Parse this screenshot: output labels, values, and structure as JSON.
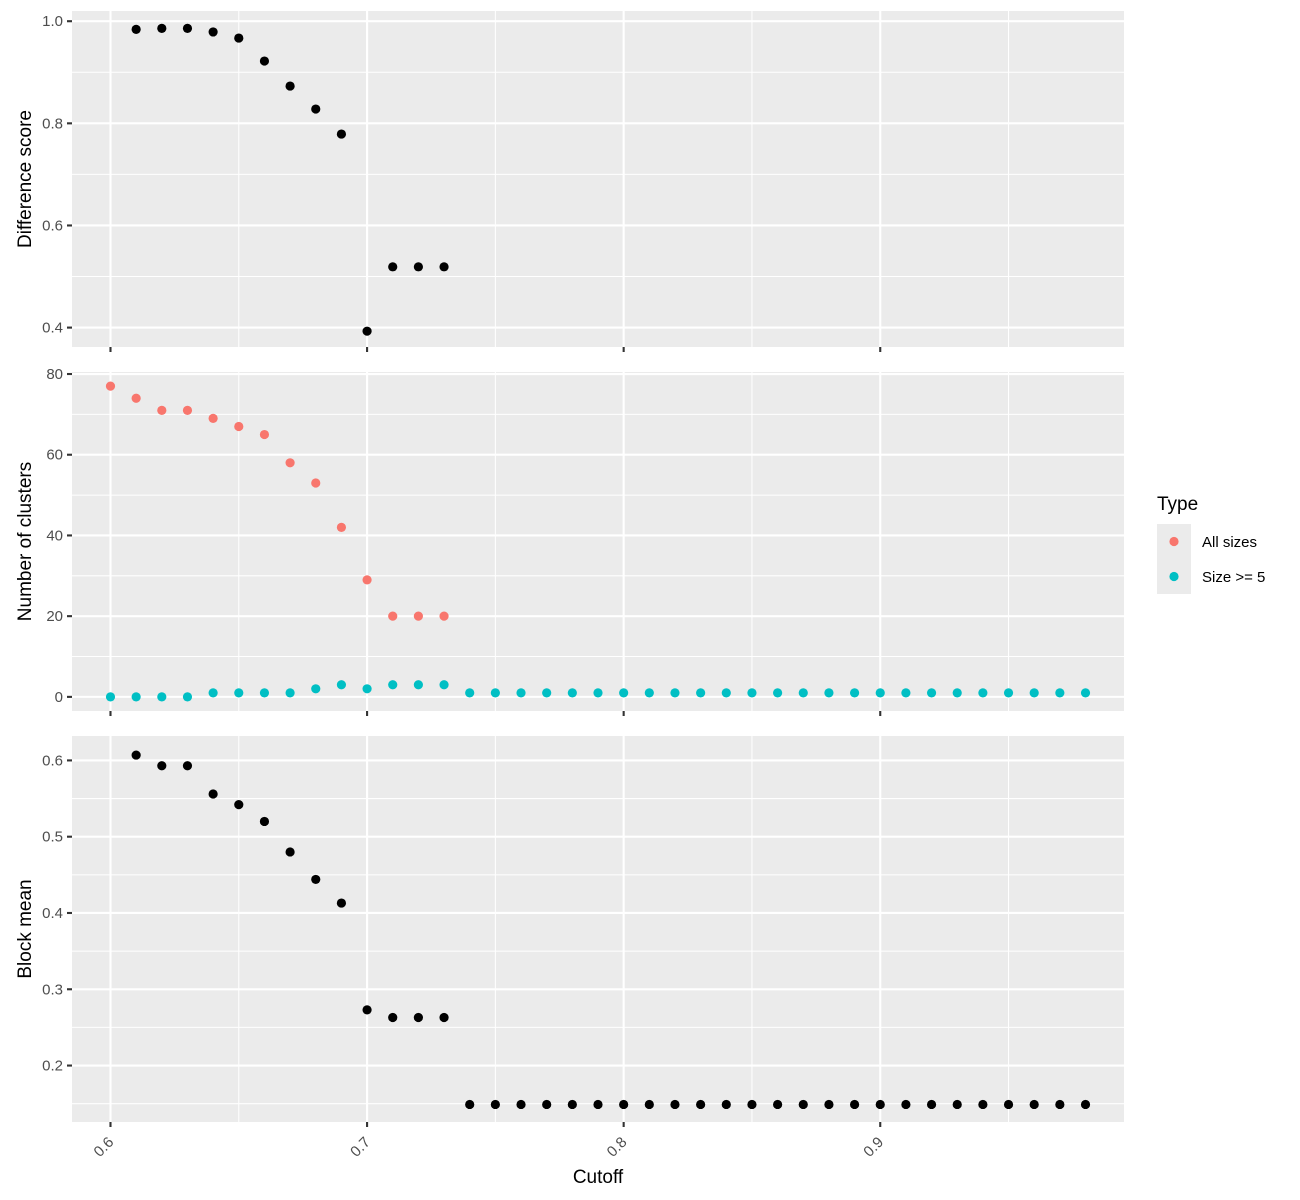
{
  "chart_data": [
    {
      "type": "scatter",
      "panel": "top",
      "ylabel": "Difference score",
      "xlim": [
        0.585,
        0.995
      ],
      "ylim": [
        0.362,
        1.02
      ],
      "yticks": [
        0.4,
        0.6,
        0.8,
        1.0
      ],
      "ytick_labels": [
        "0.4",
        "0.6",
        "0.8",
        "1.0"
      ],
      "color": "#000000",
      "x": [
        0.61,
        0.62,
        0.63,
        0.64,
        0.65,
        0.66,
        0.67,
        0.68,
        0.69,
        0.7,
        0.71,
        0.72,
        0.73
      ],
      "y": [
        0.984,
        0.986,
        0.986,
        0.979,
        0.967,
        0.922,
        0.873,
        0.828,
        0.779,
        0.393,
        0.519,
        0.519,
        0.519
      ]
    },
    {
      "type": "scatter",
      "panel": "middle",
      "ylabel": "Number of clusters",
      "xlim": [
        0.585,
        0.995
      ],
      "ylim": [
        -3.5,
        80.5
      ],
      "yticks": [
        0,
        20,
        40,
        60,
        80
      ],
      "ytick_labels": [
        "0",
        "20",
        "40",
        "60",
        "80"
      ],
      "legend": {
        "title": "Type",
        "position": "right"
      },
      "series": [
        {
          "name": "All sizes",
          "color": "#f8766d",
          "x": [
            0.6,
            0.61,
            0.62,
            0.63,
            0.64,
            0.65,
            0.66,
            0.67,
            0.68,
            0.69,
            0.7,
            0.71,
            0.72,
            0.73
          ],
          "y": [
            77,
            74,
            71,
            71,
            69,
            67,
            65,
            58,
            53,
            42,
            29,
            20,
            20,
            20
          ]
        },
        {
          "name": "Size >= 5",
          "color": "#00bfc4",
          "x": [
            0.6,
            0.61,
            0.62,
            0.63,
            0.64,
            0.65,
            0.66,
            0.67,
            0.68,
            0.69,
            0.7,
            0.71,
            0.72,
            0.73,
            0.74,
            0.75,
            0.76,
            0.77,
            0.78,
            0.79,
            0.8,
            0.81,
            0.82,
            0.83,
            0.84,
            0.85,
            0.86,
            0.87,
            0.88,
            0.89,
            0.9,
            0.91,
            0.92,
            0.93,
            0.94,
            0.95,
            0.96,
            0.97,
            0.98
          ],
          "y": [
            0,
            0,
            0,
            0,
            1,
            1,
            1,
            1,
            2,
            3,
            2,
            3,
            3,
            3,
            1,
            1,
            1,
            1,
            1,
            1,
            1,
            1,
            1,
            1,
            1,
            1,
            1,
            1,
            1,
            1,
            1,
            1,
            1,
            1,
            1,
            1,
            1,
            1,
            1
          ]
        }
      ]
    },
    {
      "type": "scatter",
      "panel": "bottom",
      "ylabel": "Block mean",
      "xlabel": "Cutoff",
      "xlim": [
        0.585,
        0.995
      ],
      "ylim": [
        0.126,
        0.632
      ],
      "yticks": [
        0.2,
        0.3,
        0.4,
        0.5,
        0.6
      ],
      "ytick_labels": [
        "0.2",
        "0.3",
        "0.4",
        "0.5",
        "0.6"
      ],
      "xticks": [
        0.6,
        0.7,
        0.8,
        0.9
      ],
      "xtick_labels": [
        "0.6",
        "0.7",
        "0.8",
        "0.9"
      ],
      "color": "#000000",
      "x": [
        0.61,
        0.62,
        0.63,
        0.64,
        0.65,
        0.66,
        0.67,
        0.68,
        0.69,
        0.7,
        0.71,
        0.72,
        0.73,
        0.74,
        0.75,
        0.76,
        0.77,
        0.78,
        0.79,
        0.8,
        0.81,
        0.82,
        0.83,
        0.84,
        0.85,
        0.86,
        0.87,
        0.88,
        0.89,
        0.9,
        0.91,
        0.92,
        0.93,
        0.94,
        0.95,
        0.96,
        0.97,
        0.98
      ],
      "y": [
        0.607,
        0.593,
        0.593,
        0.556,
        0.542,
        0.52,
        0.48,
        0.444,
        0.413,
        0.273,
        0.263,
        0.263,
        0.263,
        0.149,
        0.149,
        0.149,
        0.149,
        0.149,
        0.149,
        0.149,
        0.149,
        0.149,
        0.149,
        0.149,
        0.149,
        0.149,
        0.149,
        0.149,
        0.149,
        0.149,
        0.149,
        0.149,
        0.149,
        0.149,
        0.149,
        0.149,
        0.149,
        0.149
      ]
    }
  ]
}
